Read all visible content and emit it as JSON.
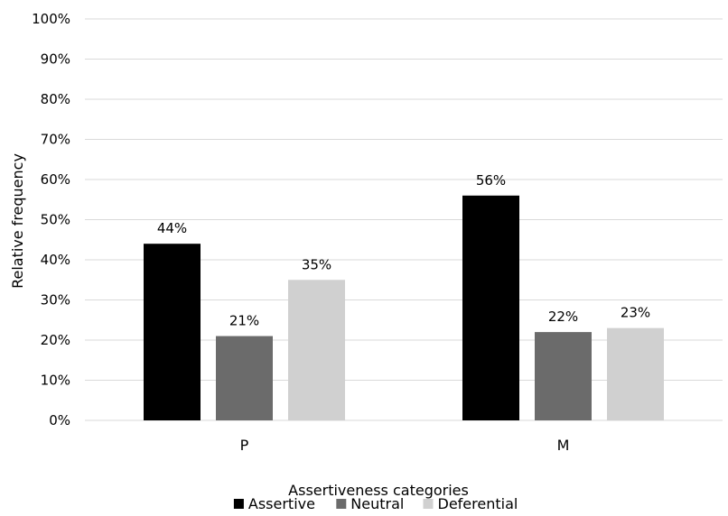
{
  "chart_data": {
    "type": "bar",
    "categories": [
      "P",
      "M"
    ],
    "series": [
      {
        "name": "Assertive",
        "values": [
          44,
          56
        ],
        "labels": [
          "44%",
          "56%"
        ],
        "color": "#000000"
      },
      {
        "name": "Neutral",
        "values": [
          21,
          22
        ],
        "labels": [
          "21%",
          "22%"
        ],
        "color": "#6b6b6b"
      },
      {
        "name": "Deferential",
        "values": [
          35,
          23
        ],
        "labels": [
          "35%",
          "23%"
        ],
        "color": "#d0d0d0"
      }
    ],
    "xlabel": "Assertiveness categories",
    "ylabel": "Relative frequency",
    "ylim": [
      0,
      100
    ],
    "yticks": [
      "0%",
      "10%",
      "20%",
      "30%",
      "40%",
      "50%",
      "60%",
      "70%",
      "80%",
      "90%",
      "100%"
    ],
    "grid": true,
    "legend_position": "bottom",
    "gridline_color": "#d9d9d9"
  }
}
